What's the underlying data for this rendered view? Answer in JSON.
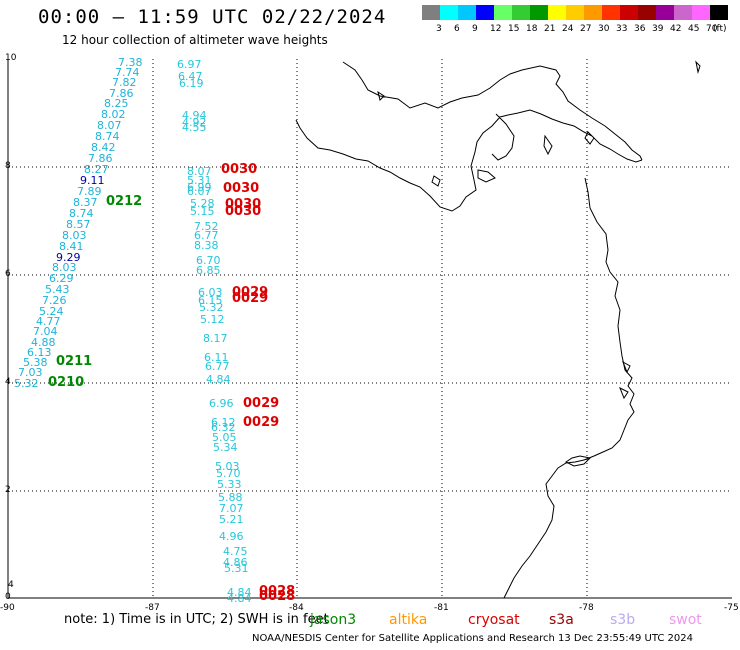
{
  "header": {
    "title": "00:00 – 11:59 UTC 02/22/2024",
    "subtitle": "12 hour collection of altimeter wave heights"
  },
  "scale": {
    "unit": "(ft)",
    "colors": [
      "#7f7f7f",
      "#00ffff",
      "#00c8ff",
      "#0000ff",
      "#66ff66",
      "#33cc33",
      "#009900",
      "#ffff00",
      "#ffcc00",
      "#ff9900",
      "#ff3300",
      "#cc0000",
      "#990000",
      "#990099",
      "#cc66cc",
      "#ff66ff",
      "#000000"
    ],
    "labels": [
      "3",
      "6",
      "9",
      "12",
      "15",
      "18",
      "21",
      "24",
      "27",
      "30",
      "33",
      "36",
      "39",
      "42",
      "45",
      "70"
    ]
  },
  "axes": {
    "x_ticks": [
      "-90",
      "-87",
      "-84",
      "-81",
      "-78",
      "-75"
    ],
    "y_ticks": [
      "10",
      "8",
      "6",
      "4",
      "2",
      "0"
    ],
    "lon_range": [
      -90,
      -75
    ],
    "lat_range": [
      0,
      10
    ]
  },
  "tracks": [
    {
      "color": "#1fb3d9",
      "values": [
        "7.38",
        "7.74",
        "7.82",
        "7.86",
        "8.25",
        "8.02",
        "8.07",
        "8.74",
        "8.42",
        "7.86",
        "8.27"
      ]
    },
    {
      "color": "#0000aa",
      "values": [
        "9.11"
      ]
    },
    {
      "color": "#1fb3d9",
      "values": [
        "7.89",
        "8.37",
        "8.74",
        "8.57",
        "8.03",
        "8.41"
      ]
    },
    {
      "color": "#0000aa",
      "values": [
        "9.29"
      ]
    },
    {
      "color": "#1fb3d9",
      "values": [
        "8.03",
        "6.29",
        "5.43",
        "7.26",
        "5.24",
        "4.77",
        "7.04",
        "4.88",
        "6.13",
        "5.38",
        "7.03",
        "5.32"
      ]
    },
    {
      "color": "#26c6da",
      "values": [
        "6.97",
        "6.47",
        "6.19",
        "4.94",
        "4.92",
        "4.55",
        "8.07",
        "5.31",
        "6.99",
        "6.07",
        "5.28",
        "5.15",
        "7.52",
        "6.77",
        "8.38",
        "6.70",
        "6.85",
        "6.03",
        "6.15",
        "5.32",
        "5.12",
        "8.17",
        "6.11",
        "6.77",
        "4.84",
        "6.96",
        "6.12",
        "6.32",
        "5.05",
        "5.34",
        "5.03",
        "5.70",
        "5.33",
        "5.88",
        "7.07",
        "5.21",
        "4.96",
        "4.75",
        "4.86",
        "5.31",
        "4.84",
        "4.84"
      ]
    }
  ],
  "pass_times": [
    {
      "label": "0212",
      "color": "#008800"
    },
    {
      "label": "0211",
      "color": "#008800"
    },
    {
      "label": "0210",
      "color": "#008800"
    },
    {
      "label": "0030",
      "color": "#dd0000"
    },
    {
      "label": "0030",
      "color": "#dd0000"
    },
    {
      "label": "0030",
      "color": "#dd0000"
    },
    {
      "label": "0030",
      "color": "#dd0000"
    },
    {
      "label": "0029",
      "color": "#dd0000"
    },
    {
      "label": "0029",
      "color": "#dd0000"
    },
    {
      "label": "0029",
      "color": "#dd0000"
    },
    {
      "label": "0029",
      "color": "#dd0000"
    },
    {
      "label": "0028",
      "color": "#dd0000"
    },
    {
      "label": "0028",
      "color": "#dd0000"
    }
  ],
  "note": "note:  1) Time is in UTC; 2) SWH is in feet",
  "satellites": [
    {
      "name": "jason3",
      "color": "#008800"
    },
    {
      "name": "altika",
      "color": "#ff9900"
    },
    {
      "name": "cryosat",
      "color": "#dd0000"
    },
    {
      "name": "s3a",
      "color": "#990000"
    },
    {
      "name": "s3b",
      "color": "#bbaaee"
    },
    {
      "name": "swot",
      "color": "#ee99ee"
    }
  ],
  "footer": "NOAA/NESDIS Center for Satellite Applications and Research   13 Dec 23:55:49 UTC 2024"
}
